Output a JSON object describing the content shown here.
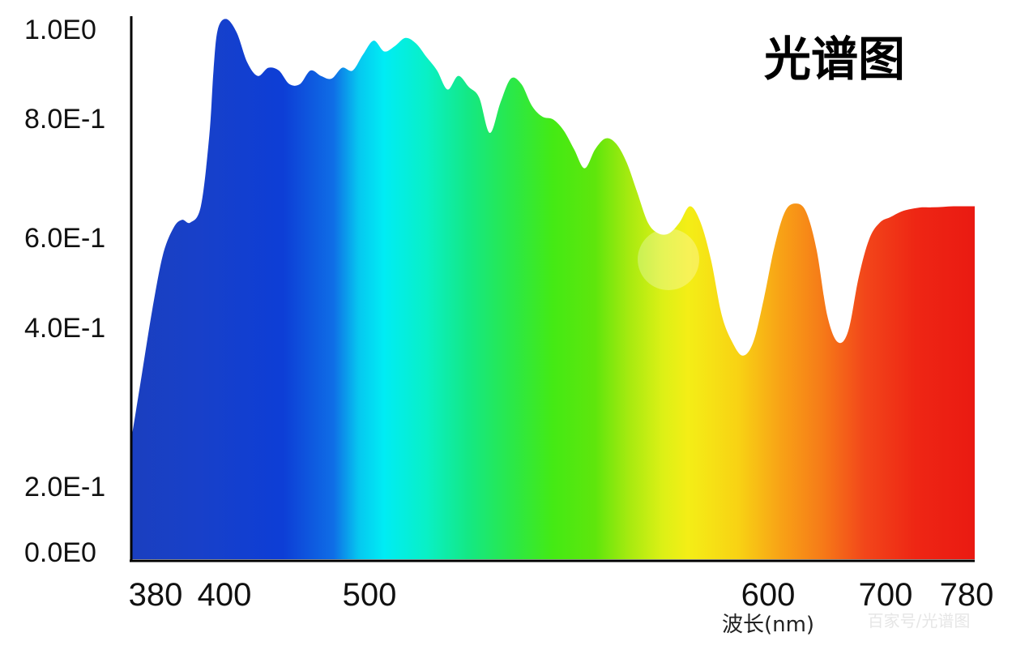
{
  "chart_data": {
    "type": "area",
    "title": "光谱图",
    "xlabel": "波长(nm)",
    "ylabel": "",
    "y_ticks": [
      "1.0E0",
      "8.0E-1",
      "6.0E-1",
      "4.0E-1",
      "2.0E-1",
      "0.0E0"
    ],
    "x_ticks": [
      "380",
      "400",
      "500",
      "600",
      "700",
      "780"
    ],
    "xlim": [
      380,
      780
    ],
    "ylim": [
      0,
      1.0
    ],
    "fill": "visible-spectrum gradient (blue → cyan → green → yellow → orange → red)",
    "series": [
      {
        "x": [
          380,
          385,
          390,
          395,
          400,
          404,
          408,
          413,
          417,
          419,
          421,
          425,
          430,
          435,
          440,
          445,
          450,
          455,
          460,
          465,
          470,
          475,
          480,
          485,
          490,
          495,
          500,
          505,
          510,
          515,
          520,
          525,
          530,
          535,
          540,
          545,
          550,
          555,
          560,
          565,
          570,
          575,
          580,
          585,
          590,
          595,
          600,
          605,
          610,
          615,
          620,
          625,
          630,
          635,
          640,
          645,
          650,
          655,
          660,
          665,
          670,
          675,
          680,
          685,
          690,
          695,
          700,
          705,
          710,
          715,
          720,
          725,
          730,
          735,
          740,
          745,
          750,
          755,
          760,
          765,
          770,
          775,
          780
        ],
        "values": [
          0.22,
          0.34,
          0.46,
          0.56,
          0.61,
          0.625,
          0.62,
          0.65,
          0.78,
          0.9,
          0.975,
          0.995,
          0.97,
          0.915,
          0.89,
          0.905,
          0.9,
          0.875,
          0.875,
          0.9,
          0.89,
          0.885,
          0.905,
          0.9,
          0.93,
          0.955,
          0.935,
          0.945,
          0.96,
          0.95,
          0.925,
          0.9,
          0.865,
          0.89,
          0.87,
          0.85,
          0.785,
          0.84,
          0.885,
          0.875,
          0.835,
          0.815,
          0.81,
          0.79,
          0.755,
          0.72,
          0.755,
          0.775,
          0.765,
          0.73,
          0.675,
          0.62,
          0.6,
          0.6,
          0.62,
          0.65,
          0.62,
          0.55,
          0.45,
          0.4,
          0.375,
          0.4,
          0.48,
          0.575,
          0.64,
          0.655,
          0.64,
          0.57,
          0.45,
          0.4,
          0.42,
          0.52,
          0.59,
          0.62,
          0.63,
          0.64,
          0.645,
          0.648,
          0.648,
          0.649,
          0.65,
          0.65,
          0.65
        ]
      }
    ]
  },
  "watermark": "百家号/光谱图"
}
